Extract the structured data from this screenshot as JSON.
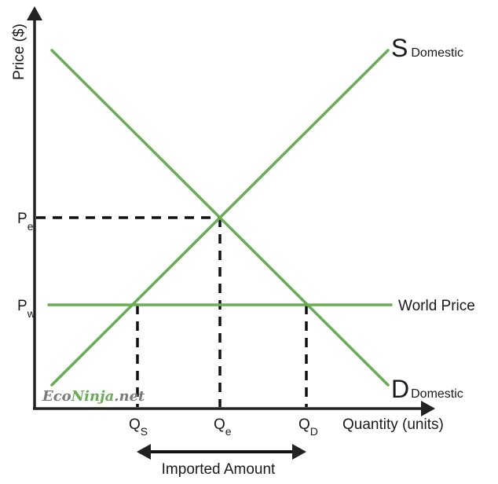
{
  "diagram": {
    "axes": {
      "y_label": "Price ($)",
      "x_label": "Quantity (units)"
    },
    "curves": {
      "supply": {
        "letter": "S",
        "subscript": "Domestic"
      },
      "demand": {
        "letter": "D",
        "subscript": "Domestic"
      },
      "world_price": {
        "label": "World Price"
      }
    },
    "price_ticks": {
      "equilibrium": {
        "letter": "P",
        "subscript": "e"
      },
      "world": {
        "letter": "P",
        "subscript": "w"
      }
    },
    "quantity_ticks": {
      "supplied": {
        "letter": "Q",
        "subscript": "S"
      },
      "equilibrium": {
        "letter": "Q",
        "subscript": "e"
      },
      "demanded": {
        "letter": "Q",
        "subscript": "D"
      }
    },
    "imported_label": "Imported Amount",
    "watermark": {
      "part1": "Eco",
      "part2": "Ninja",
      "part3": ".net"
    },
    "colors": {
      "curve": "#6aab55",
      "axis": "#222222",
      "watermark_accent": "#6aab55",
      "watermark_base": "#7a7a7a"
    }
  }
}
